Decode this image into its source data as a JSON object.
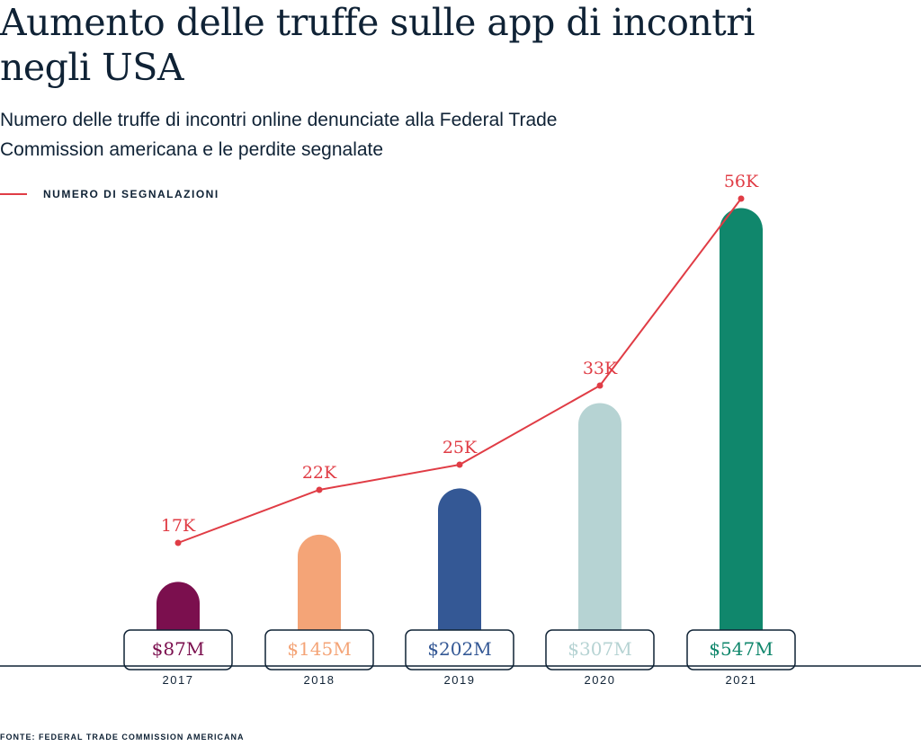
{
  "title": "Aumento delle truffe sulle app di incontri negli USA",
  "subtitle": "Numero delle truffe di incontri online denunciate alla Federal Trade Commission americana e le perdite segnalate",
  "source": "FONTE: FEDERAL TRADE COMMISSION AMERICANA",
  "chart_data": {
    "type": "bar",
    "categories": [
      "2017",
      "2018",
      "2019",
      "2020",
      "2021"
    ],
    "series": [
      {
        "kind": "bar",
        "unit": "million USD",
        "values": [
          87,
          145,
          202,
          307,
          547
        ],
        "labels": [
          "$87M",
          "$145M",
          "$202M",
          "$307M",
          "$547M"
        ],
        "colors": [
          "#7b0f4e",
          "#f4a477",
          "#345895",
          "#b6d3d3",
          "#10876c"
        ]
      },
      {
        "kind": "line",
        "name": "NUMERO DI SEGNALAZIONI",
        "unit": "thousand",
        "values": [
          17,
          22,
          25,
          33,
          56
        ],
        "labels": [
          "17K",
          "22K",
          "25K",
          "33K",
          "56K"
        ],
        "color": "#e03c45"
      }
    ],
    "legend": "top-left",
    "grid": false
  }
}
